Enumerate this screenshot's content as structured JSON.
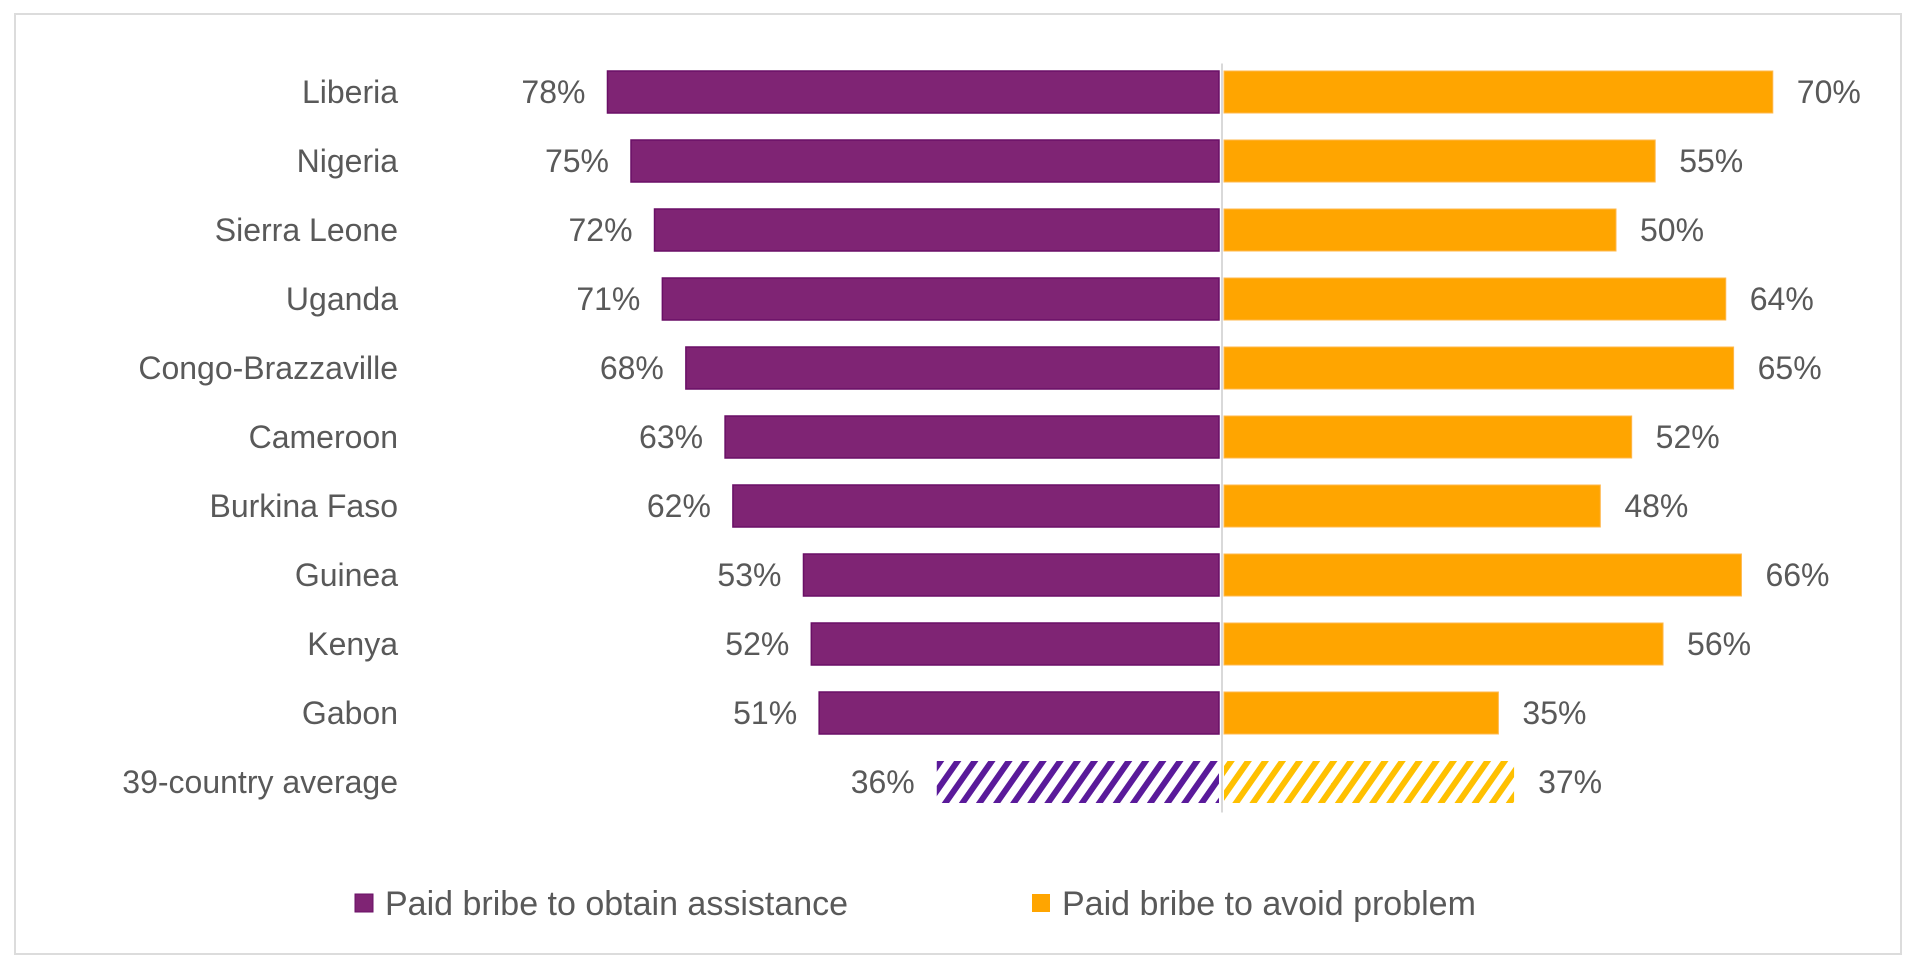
{
  "chart_data": {
    "type": "bar",
    "orientation": "horizontal",
    "layout": "diverging",
    "title": "",
    "xlabel": "",
    "ylabel": "",
    "grid": false,
    "xlim": [
      0,
      100
    ],
    "value_format": "percent",
    "categories": [
      "Liberia",
      "Nigeria",
      "Sierra Leone",
      "Uganda",
      "Congo-Brazzaville",
      "Cameroon",
      "Burkina Faso",
      "Guinea",
      "Kenya",
      "Gabon",
      "39-country average"
    ],
    "series": [
      {
        "name": "Paid bribe to obtain assistance",
        "side": "left",
        "color": "#7f2474",
        "hatch_color": "#5a1a9a",
        "values": [
          78,
          75,
          72,
          71,
          68,
          63,
          62,
          53,
          52,
          51,
          36
        ],
        "labels": [
          "78%",
          "75%",
          "72%",
          "71%",
          "68%",
          "63%",
          "62%",
          "53%",
          "52%",
          "51%",
          "36%"
        ]
      },
      {
        "name": "Paid bribe to avoid problem",
        "side": "right",
        "color": "#ffa500",
        "hatch_color": "#ffc000",
        "values": [
          70,
          55,
          50,
          64,
          65,
          52,
          48,
          66,
          56,
          35,
          37
        ],
        "labels": [
          "70%",
          "55%",
          "50%",
          "64%",
          "65%",
          "52%",
          "48%",
          "66%",
          "56%",
          "35%",
          "37%"
        ]
      }
    ],
    "hatched_categories": [
      "39-country average"
    ],
    "legend": {
      "position": "bottom-center",
      "items": [
        {
          "label": "Paid bribe to obtain assistance",
          "color": "#7f2474"
        },
        {
          "label": "Paid bribe to avoid problem",
          "color": "#ffa500"
        }
      ]
    }
  }
}
